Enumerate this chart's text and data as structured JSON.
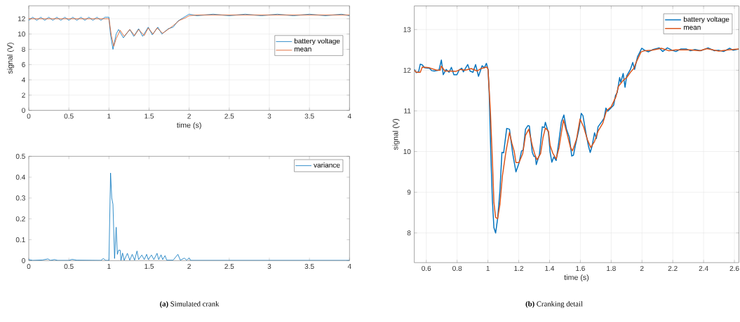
{
  "chart_data": [
    {
      "type": "line",
      "xlabel": "time (s)",
      "ylabel": "signal (V)",
      "xlim": [
        0,
        4
      ],
      "ylim": [
        0,
        13.7
      ],
      "xticks": [
        0,
        0.5,
        1,
        1.5,
        2,
        2.5,
        3,
        3.5,
        4
      ],
      "yticks": [
        0,
        2,
        4,
        6,
        8,
        10,
        12
      ],
      "grid": true,
      "legend": "right",
      "marker": "none",
      "line_style": "solid",
      "series": [
        {
          "name": "battery voltage",
          "color": "#0072bd",
          "x": [
            0,
            0.05,
            0.1,
            0.15,
            0.2,
            0.25,
            0.3,
            0.35,
            0.4,
            0.45,
            0.5,
            0.55,
            0.6,
            0.65,
            0.7,
            0.75,
            0.8,
            0.85,
            0.9,
            0.95,
            1.0,
            1.02,
            1.05,
            1.09,
            1.12,
            1.18,
            1.26,
            1.31,
            1.37,
            1.42,
            1.49,
            1.54,
            1.61,
            1.66,
            1.74,
            1.8,
            1.86,
            1.92,
            2.0,
            2.1,
            2.3,
            2.5,
            2.7,
            2.9,
            3.1,
            3.3,
            3.5,
            3.7,
            3.9,
            4.0
          ],
          "values": [
            11.8,
            12.2,
            11.8,
            12.2,
            11.8,
            12.2,
            11.8,
            12.2,
            11.8,
            12.2,
            11.8,
            12.2,
            11.8,
            12.2,
            11.8,
            12.2,
            11.8,
            12.2,
            11.8,
            12.2,
            12.2,
            9.9,
            8.0,
            10.0,
            10.6,
            9.5,
            10.6,
            9.7,
            10.7,
            9.7,
            10.9,
            9.9,
            10.9,
            10.0,
            10.7,
            10.9,
            11.7,
            12.1,
            12.6,
            12.4,
            12.6,
            12.4,
            12.6,
            12.4,
            12.6,
            12.4,
            12.6,
            12.4,
            12.6,
            12.4
          ]
        },
        {
          "name": "mean",
          "color": "#d95319",
          "x": [
            0,
            0.5,
            1.0,
            1.03,
            1.06,
            1.09,
            1.14,
            1.19,
            1.26,
            1.32,
            1.37,
            1.44,
            1.49,
            1.55,
            1.6,
            1.67,
            1.75,
            1.8,
            1.88,
            1.95,
            2.0,
            2.1,
            3.0,
            4.0
          ],
          "values": [
            12.0,
            12.0,
            12.0,
            9.8,
            8.4,
            9.4,
            10.5,
            9.7,
            10.6,
            9.8,
            10.6,
            9.8,
            10.8,
            10.0,
            10.8,
            10.1,
            10.7,
            11.1,
            11.8,
            12.1,
            12.4,
            12.5,
            12.5,
            12.5
          ]
        }
      ]
    },
    {
      "type": "line",
      "xlim": [
        0,
        4
      ],
      "ylim": [
        0,
        0.5
      ],
      "xticks": [
        0,
        0.5,
        1,
        1.5,
        2,
        2.5,
        3,
        3.5,
        4
      ],
      "yticks": [
        0,
        0.1,
        0.2,
        0.3,
        0.4,
        0.5
      ],
      "legend": "top right",
      "marker": "none",
      "line_style": "solid",
      "annotations": [
        "**(a)** Simulated crank"
      ],
      "series": [
        {
          "name": "variance",
          "color": "#0072bd",
          "x": [
            0,
            0.05,
            0.17,
            0.24,
            0.27,
            0.32,
            0.36,
            0.5,
            0.54,
            0.6,
            0.9,
            0.93,
            0.96,
            1.0,
            1.02,
            1.035,
            1.05,
            1.07,
            1.09,
            1.105,
            1.12,
            1.14,
            1.15,
            1.17,
            1.19,
            1.23,
            1.26,
            1.29,
            1.32,
            1.35,
            1.37,
            1.41,
            1.44,
            1.47,
            1.49,
            1.53,
            1.56,
            1.6,
            1.62,
            1.65,
            1.67,
            1.7,
            1.72,
            1.8,
            1.86,
            1.89,
            1.94,
            1.97,
            2.0,
            2.02,
            4.0
          ],
          "values": [
            0.005,
            0.001,
            0.003,
            0.008,
            0.001,
            0.005,
            0.001,
            0.001,
            0.006,
            0.002,
            0.001,
            0.01,
            0.001,
            0.001,
            0.42,
            0.3,
            0.27,
            0.01,
            0.16,
            0.03,
            0.05,
            0.05,
            0.001,
            0.036,
            0.001,
            0.035,
            0.002,
            0.03,
            0.002,
            0.046,
            0.005,
            0.027,
            0.005,
            0.03,
            0.005,
            0.027,
            0.005,
            0.035,
            0.005,
            0.028,
            0.005,
            0.024,
            0.002,
            0.002,
            0.03,
            0.002,
            0.012,
            0.002,
            0.013,
            0.001,
            0.001
          ]
        }
      ]
    },
    {
      "type": "line",
      "xlabel": "time (s)",
      "ylabel": "signal (V)",
      "xlim": [
        0.522,
        2.629
      ],
      "ylim": [
        7.27,
        13.58
      ],
      "xticks": [
        0.6,
        0.8,
        1,
        1.2,
        1.4,
        1.6,
        1.8,
        2,
        2.2,
        2.4,
        2.6
      ],
      "yticks": [
        8,
        9,
        10,
        11,
        12,
        13
      ],
      "grid": true,
      "legend": "top right",
      "marker": "none",
      "line_style": "solid",
      "annotations": [
        "**(b)** Cranking detail"
      ],
      "series": [
        {
          "name": "battery voltage",
          "color": "#0072bd",
          "x": [
            0.522,
            0.535,
            0.55,
            0.561,
            0.574,
            0.589,
            0.62,
            0.636,
            0.651,
            0.682,
            0.698,
            0.71,
            0.729,
            0.748,
            0.763,
            0.779,
            0.799,
            0.814,
            0.83,
            0.841,
            0.869,
            0.884,
            0.903,
            0.92,
            0.939,
            0.962,
            0.977,
            0.99,
            1.001,
            1.008,
            1.019,
            1.029,
            1.039,
            1.05,
            1.063,
            1.078,
            1.091,
            1.102,
            1.122,
            1.14,
            1.161,
            1.182,
            1.202,
            1.218,
            1.229,
            1.244,
            1.26,
            1.269,
            1.288,
            1.299,
            1.308,
            1.314,
            1.334,
            1.353,
            1.366,
            1.373,
            1.393,
            1.404,
            1.415,
            1.428,
            1.443,
            1.459,
            1.477,
            1.493,
            1.51,
            1.529,
            1.544,
            1.555,
            1.567,
            1.591,
            1.606,
            1.617,
            1.637,
            1.653,
            1.664,
            1.676,
            1.692,
            1.704,
            1.715,
            1.738,
            1.754,
            1.766,
            1.777,
            1.793,
            1.816,
            1.828,
            1.839,
            1.855,
            1.862,
            1.878,
            1.89,
            1.901,
            1.925,
            1.94,
            1.952,
            1.971,
            1.987,
            1.998,
            2.018,
            2.041,
            2.072,
            2.111,
            2.134,
            2.165,
            2.196,
            2.22,
            2.251,
            2.289,
            2.313,
            2.344,
            2.383,
            2.429,
            2.468,
            2.499,
            2.53,
            2.569,
            2.592,
            2.628
          ],
          "values": [
            12.02,
            11.94,
            11.96,
            12.15,
            12.13,
            12.06,
            12.05,
            11.99,
            11.98,
            12.0,
            12.25,
            11.89,
            12.02,
            11.95,
            12.07,
            11.89,
            11.89,
            12.01,
            12.05,
            11.96,
            12.14,
            11.98,
            11.95,
            12.14,
            11.85,
            12.11,
            12.06,
            12.17,
            12.02,
            11.49,
            9.92,
            8.8,
            8.13,
            8.0,
            8.35,
            9.04,
            9.98,
            9.97,
            10.57,
            10.55,
            9.95,
            9.5,
            9.72,
            10.01,
            10.04,
            10.55,
            10.64,
            10.63,
            9.98,
            9.88,
            9.88,
            9.68,
            9.92,
            10.61,
            10.59,
            10.72,
            10.46,
            9.98,
            9.74,
            9.87,
            9.78,
            10.21,
            10.73,
            10.9,
            10.55,
            10.35,
            9.89,
            9.91,
            10.14,
            10.55,
            10.94,
            10.88,
            10.44,
            10.13,
            9.98,
            10.13,
            10.46,
            10.32,
            10.61,
            10.73,
            10.82,
            11.07,
            10.99,
            11.05,
            11.14,
            11.38,
            11.45,
            11.82,
            11.7,
            11.92,
            11.58,
            11.86,
            12.02,
            12.19,
            12.02,
            12.33,
            12.45,
            12.54,
            12.49,
            12.45,
            12.51,
            12.55,
            12.46,
            12.55,
            12.49,
            12.46,
            12.52,
            12.52,
            12.48,
            12.51,
            12.48,
            12.55,
            12.48,
            12.49,
            12.46,
            12.54,
            12.49,
            12.52
          ]
        },
        {
          "name": "mean",
          "color": "#d95319",
          "x": [
            0.522,
            0.535,
            0.561,
            0.574,
            0.62,
            0.667,
            0.69,
            0.698,
            0.721,
            0.752,
            0.791,
            0.822,
            0.853,
            0.892,
            0.931,
            0.954,
            0.993,
            1.001,
            1.016,
            1.029,
            1.039,
            1.05,
            1.063,
            1.078,
            1.094,
            1.117,
            1.14,
            1.156,
            1.171,
            1.182,
            1.202,
            1.226,
            1.244,
            1.265,
            1.288,
            1.307,
            1.319,
            1.342,
            1.358,
            1.373,
            1.393,
            1.404,
            1.42,
            1.443,
            1.462,
            1.49,
            1.513,
            1.536,
            1.549,
            1.575,
            1.598,
            1.622,
            1.645,
            1.668,
            1.692,
            1.715,
            1.746,
            1.769,
            1.8,
            1.831,
            1.847,
            1.878,
            1.901,
            1.925,
            1.948,
            1.963,
            1.994,
            2.018,
            2.064,
            2.126,
            2.173,
            2.22,
            2.313,
            2.375,
            2.421,
            2.499,
            2.561,
            2.628
          ],
          "values": [
            12.0,
            11.95,
            11.95,
            12.08,
            12.06,
            12.0,
            12.0,
            12.1,
            11.98,
            11.98,
            11.97,
            12.02,
            12.0,
            12.04,
            11.98,
            12.04,
            12.08,
            12.02,
            11.0,
            9.8,
            8.75,
            8.38,
            8.35,
            8.7,
            9.4,
            10.0,
            10.47,
            10.2,
            10.0,
            9.73,
            9.73,
            9.95,
            10.4,
            10.55,
            10.15,
            9.9,
            9.8,
            9.95,
            10.35,
            10.58,
            10.5,
            10.15,
            9.97,
            9.82,
            10.1,
            10.78,
            10.45,
            10.1,
            10.02,
            10.3,
            10.8,
            10.6,
            10.3,
            10.1,
            10.25,
            10.5,
            10.7,
            11.0,
            11.1,
            11.35,
            11.6,
            11.75,
            11.82,
            11.95,
            12.05,
            12.2,
            12.45,
            12.48,
            12.49,
            12.54,
            12.48,
            12.5,
            12.5,
            12.48,
            12.53,
            12.47,
            12.5,
            12.52
          ]
        }
      ]
    }
  ]
}
